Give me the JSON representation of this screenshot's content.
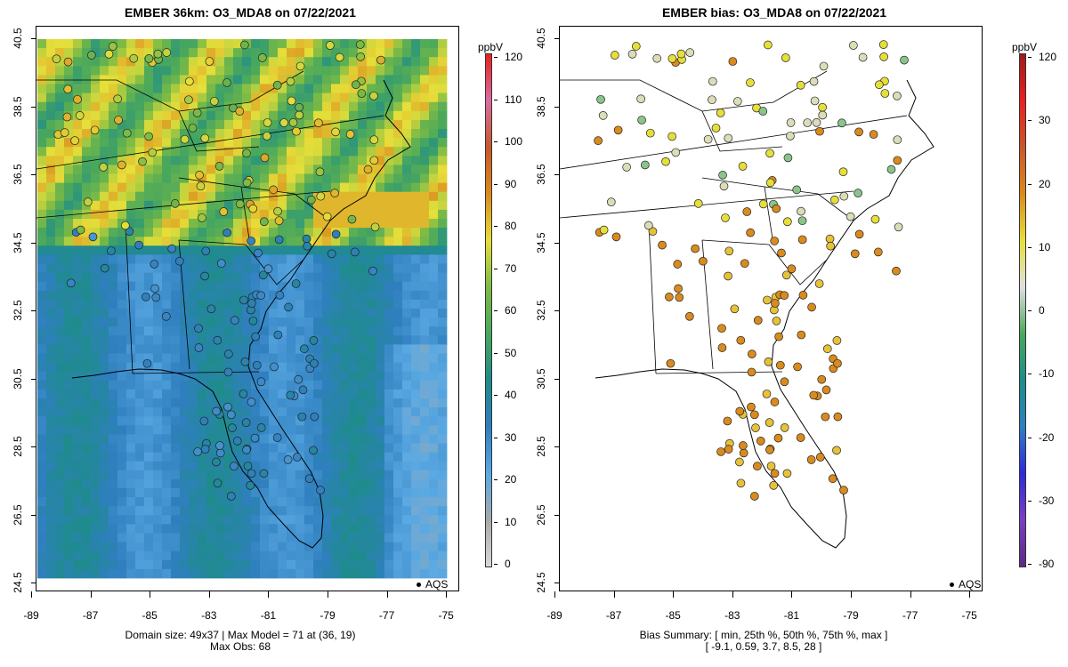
{
  "left_panel": {
    "title": "EMBER 36km: O3_MDA8 on 07/22/2021",
    "caption_line1": "Domain size: 49x37 | Max Model = 71 at (36, 19)",
    "caption_line2": "Max Obs: 68",
    "colorbar_unit": "ppbV",
    "colorbar_ticks": [
      "120",
      "110",
      "100",
      "90",
      "80",
      "70",
      "60",
      "50",
      "40",
      "30",
      "20",
      "10",
      "0"
    ],
    "legend_label": "AQS"
  },
  "right_panel": {
    "title": "EMBER bias: O3_MDA8 on 07/22/2021",
    "caption_line1": "Bias Summary: [ min, 25th %, 50th %, 75th %, max ]",
    "caption_line2": "[ -9.1,   0.59,   3.7,   8.5,   28 ]",
    "colorbar_unit": "ppbV",
    "colorbar_ticks": [
      "120",
      "30",
      "20",
      "10",
      "0",
      "-10",
      "-20",
      "-30",
      "-90"
    ],
    "legend_label": "AQS"
  },
  "axes": {
    "y_ticks": [
      "40.5",
      "38.5",
      "36.5",
      "34.5",
      "32.5",
      "30.5",
      "28.5",
      "26.5",
      "24.5"
    ],
    "x_ticks": [
      "-89",
      "-87",
      "-85",
      "-83",
      "-81",
      "-79",
      "-77",
      "-75"
    ]
  },
  "colors": {
    "ozone_scale": [
      "#d8d8d8",
      "#a9a9a9",
      "#5aa9e3",
      "#2f7fbf",
      "#1e8c8a",
      "#4aa85c",
      "#7dbb45",
      "#e6df3a",
      "#d98b1d",
      "#c8582a",
      "#d86ea0",
      "#e8201f"
    ],
    "bias_scale_low": "#6a3d9a",
    "bias_scale_zero": "#e0e0e0",
    "bias_scale_high": "#c0392b"
  }
}
